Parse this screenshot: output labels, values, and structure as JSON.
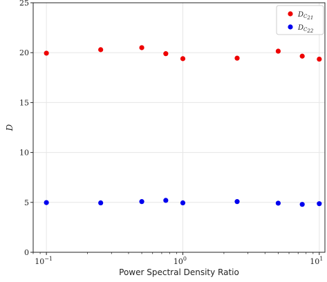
{
  "chart_data": {
    "type": "scatter",
    "xscale": "log",
    "xlim": [
      0.08,
      11
    ],
    "ylim": [
      0,
      25
    ],
    "xlabel": "Power Spectral Density Ratio",
    "ylabel": "D",
    "yticks": [
      0,
      5,
      10,
      15,
      20,
      25
    ],
    "xticks": [
      {
        "base": "10",
        "exp": "−1",
        "value": 0.1
      },
      {
        "base": "10",
        "exp": "0",
        "value": 1
      },
      {
        "base": "10",
        "exp": "1",
        "value": 10
      }
    ],
    "grid": true,
    "legend_position": "top-right",
    "series": [
      {
        "name": "D_C21",
        "legend_main": "D",
        "legend_sub": "C",
        "legend_subsub": "21",
        "color": "#ee0000",
        "x": [
          0.1,
          0.25,
          0.5,
          0.75,
          1.0,
          2.5,
          5.0,
          7.5,
          10.0
        ],
        "y": [
          19.95,
          20.3,
          20.5,
          19.9,
          19.4,
          19.45,
          20.15,
          19.65,
          19.35
        ]
      },
      {
        "name": "D_C22",
        "legend_main": "D",
        "legend_sub": "C",
        "legend_subsub": "22",
        "color": "#0000ee",
        "x": [
          0.1,
          0.25,
          0.5,
          0.75,
          1.0,
          2.5,
          5.0,
          7.5,
          10.0
        ],
        "y": [
          4.98,
          4.95,
          5.08,
          5.2,
          4.95,
          5.08,
          4.92,
          4.8,
          4.87
        ]
      }
    ]
  }
}
